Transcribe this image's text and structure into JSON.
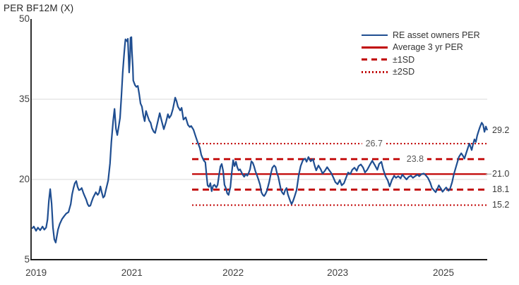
{
  "chart_data": {
    "type": "line",
    "title": "PER BF12M (X)",
    "ylim": [
      5,
      50
    ],
    "grid": "horizontal",
    "legend_position": "top-right",
    "colors": {
      "series": "#1F4E91",
      "stats": "#C00000",
      "grid": "#D9D9D9",
      "axis": "#1A1A1A",
      "text": "#404040",
      "annotation": "#595959",
      "leader": "#A9A9A9"
    },
    "y_ticks": [
      {
        "label": "50",
        "value": 50,
        "grid": false
      },
      {
        "label": "35",
        "value": 35,
        "grid": true
      },
      {
        "label": "20",
        "value": 20,
        "grid": true
      },
      {
        "label": "5",
        "value": 5,
        "grid": false
      }
    ],
    "x_ticks": [
      {
        "label": "2019",
        "pos": 0.011
      },
      {
        "label": "2021",
        "pos": 0.221
      },
      {
        "label": "2022",
        "pos": 0.443
      },
      {
        "label": "2023",
        "pos": 0.672
      },
      {
        "label": "2025",
        "pos": 0.904
      }
    ],
    "legend": [
      {
        "label": "RE asset owners PER",
        "style": "solid",
        "color": "#1F4E91"
      },
      {
        "label": "Average 3 yr PER",
        "style": "solid",
        "color": "#C00000"
      },
      {
        "label": "±1SD",
        "style": "dashed",
        "color": "#C00000"
      },
      {
        "label": "±2SD",
        "style": "dotted",
        "color": "#C00000"
      }
    ],
    "ref_lines": [
      {
        "name": "average-3yr-per",
        "value": 21.0,
        "style": "solid",
        "start": 0.353
      },
      {
        "name": "plus-1sd",
        "value": 23.8,
        "style": "dashed",
        "start": 0.353
      },
      {
        "name": "minus-1sd",
        "value": 18.1,
        "style": "dashed",
        "start": 0.353
      },
      {
        "name": "plus-2sd",
        "value": 26.7,
        "style": "dotted",
        "start": 0.353
      },
      {
        "name": "minus-2sd",
        "value": 15.2,
        "style": "dotted",
        "start": 0.353
      }
    ],
    "annotations": [
      {
        "label": "26.7",
        "value": 26.7,
        "placement": "inline",
        "pos": 0.752
      },
      {
        "label": "23.8",
        "value": 23.8,
        "placement": "inline",
        "pos": 0.842
      },
      {
        "label": "29.2",
        "value": 29.2,
        "placement": "right"
      },
      {
        "label": "21.0",
        "value": 21.0,
        "placement": "right",
        "leader": true
      },
      {
        "label": "18.1",
        "value": 18.1,
        "placement": "right"
      },
      {
        "label": "15.2",
        "value": 15.2,
        "placement": "right"
      }
    ],
    "series": {
      "name": "RE asset owners PER",
      "points": [
        [
          0.002,
          10.8
        ],
        [
          0.006,
          11.2
        ],
        [
          0.011,
          10.4
        ],
        [
          0.015,
          11.0
        ],
        [
          0.02,
          10.5
        ],
        [
          0.025,
          11.2
        ],
        [
          0.029,
          10.6
        ],
        [
          0.033,
          11.0
        ],
        [
          0.036,
          12.5
        ],
        [
          0.039,
          16.0
        ],
        [
          0.042,
          18.2
        ],
        [
          0.045,
          15.5
        ],
        [
          0.048,
          11.0
        ],
        [
          0.051,
          8.8
        ],
        [
          0.054,
          8.2
        ],
        [
          0.059,
          10.6
        ],
        [
          0.063,
          11.7
        ],
        [
          0.068,
          12.6
        ],
        [
          0.073,
          13.2
        ],
        [
          0.077,
          13.6
        ],
        [
          0.082,
          13.9
        ],
        [
          0.087,
          15.4
        ],
        [
          0.09,
          17.2
        ],
        [
          0.093,
          18.4
        ],
        [
          0.096,
          19.3
        ],
        [
          0.099,
          19.7
        ],
        [
          0.102,
          18.6
        ],
        [
          0.105,
          18.0
        ],
        [
          0.108,
          18.1
        ],
        [
          0.111,
          18.4
        ],
        [
          0.115,
          17.4
        ],
        [
          0.118,
          16.8
        ],
        [
          0.121,
          16.2
        ],
        [
          0.124,
          15.4
        ],
        [
          0.127,
          15.0
        ],
        [
          0.13,
          15.1
        ],
        [
          0.133,
          15.9
        ],
        [
          0.136,
          16.6
        ],
        [
          0.139,
          17.1
        ],
        [
          0.142,
          17.6
        ],
        [
          0.146,
          17.1
        ],
        [
          0.149,
          17.5
        ],
        [
          0.152,
          18.7
        ],
        [
          0.155,
          17.6
        ],
        [
          0.158,
          16.6
        ],
        [
          0.161,
          16.9
        ],
        [
          0.164,
          18.0
        ],
        [
          0.169,
          19.8
        ],
        [
          0.173,
          23.0
        ],
        [
          0.176,
          27.0
        ],
        [
          0.18,
          31.0
        ],
        [
          0.183,
          33.2
        ],
        [
          0.186,
          29.5
        ],
        [
          0.189,
          28.3
        ],
        [
          0.192,
          29.8
        ],
        [
          0.195,
          31.5
        ],
        [
          0.198,
          35.5
        ],
        [
          0.201,
          40.0
        ],
        [
          0.204,
          43.5
        ],
        [
          0.206,
          45.5
        ],
        [
          0.207,
          46.2
        ],
        [
          0.211,
          45.8
        ],
        [
          0.212,
          46.3
        ],
        [
          0.214,
          42.5
        ],
        [
          0.215,
          40.0
        ],
        [
          0.217,
          43.0
        ],
        [
          0.218,
          46.5
        ],
        [
          0.22,
          46.6
        ],
        [
          0.221,
          44.0
        ],
        [
          0.223,
          41.0
        ],
        [
          0.224,
          38.5
        ],
        [
          0.228,
          37.6
        ],
        [
          0.231,
          37.3
        ],
        [
          0.234,
          37.5
        ],
        [
          0.237,
          36.0
        ],
        [
          0.24,
          34.2
        ],
        [
          0.243,
          33.6
        ],
        [
          0.246,
          32.0
        ],
        [
          0.249,
          30.9
        ],
        [
          0.252,
          32.8
        ],
        [
          0.255,
          32.0
        ],
        [
          0.259,
          31.0
        ],
        [
          0.262,
          30.6
        ],
        [
          0.265,
          29.6
        ],
        [
          0.269,
          28.9
        ],
        [
          0.272,
          28.7
        ],
        [
          0.277,
          30.5
        ],
        [
          0.282,
          32.4
        ],
        [
          0.286,
          31.0
        ],
        [
          0.291,
          29.4
        ],
        [
          0.296,
          30.8
        ],
        [
          0.3,
          32.2
        ],
        [
          0.303,
          31.5
        ],
        [
          0.307,
          32.0
        ],
        [
          0.311,
          33.2
        ],
        [
          0.316,
          35.3
        ],
        [
          0.319,
          34.6
        ],
        [
          0.322,
          33.6
        ],
        [
          0.327,
          32.9
        ],
        [
          0.33,
          33.4
        ],
        [
          0.334,
          31.2
        ],
        [
          0.339,
          31.6
        ],
        [
          0.344,
          30.2
        ],
        [
          0.348,
          29.8
        ],
        [
          0.351,
          30.0
        ],
        [
          0.356,
          29.3
        ],
        [
          0.361,
          28.0
        ],
        [
          0.365,
          27.0
        ],
        [
          0.37,
          25.9
        ],
        [
          0.373,
          24.6
        ],
        [
          0.376,
          24.0
        ],
        [
          0.379,
          23.5
        ],
        [
          0.382,
          23.2
        ],
        [
          0.385,
          20.5
        ],
        [
          0.387,
          18.9
        ],
        [
          0.39,
          18.6
        ],
        [
          0.393,
          19.3
        ],
        [
          0.396,
          17.8
        ],
        [
          0.399,
          18.8
        ],
        [
          0.402,
          19.0
        ],
        [
          0.406,
          18.5
        ],
        [
          0.409,
          19.0
        ],
        [
          0.412,
          20.8
        ],
        [
          0.415,
          22.4
        ],
        [
          0.418,
          22.9
        ],
        [
          0.421,
          21.6
        ],
        [
          0.424,
          19.0
        ],
        [
          0.427,
          18.4
        ],
        [
          0.43,
          17.4
        ],
        [
          0.433,
          17.1
        ],
        [
          0.437,
          18.6
        ],
        [
          0.44,
          21.3
        ],
        [
          0.443,
          23.6
        ],
        [
          0.446,
          22.5
        ],
        [
          0.449,
          23.3
        ],
        [
          0.452,
          22.3
        ],
        [
          0.455,
          21.7
        ],
        [
          0.458,
          21.9
        ],
        [
          0.461,
          21.4
        ],
        [
          0.464,
          20.9
        ],
        [
          0.467,
          20.5
        ],
        [
          0.471,
          21.0
        ],
        [
          0.474,
          20.7
        ],
        [
          0.477,
          21.2
        ],
        [
          0.48,
          21.9
        ],
        [
          0.483,
          23.4
        ],
        [
          0.486,
          23.1
        ],
        [
          0.489,
          22.4
        ],
        [
          0.492,
          21.5
        ],
        [
          0.495,
          20.8
        ],
        [
          0.498,
          20.1
        ],
        [
          0.502,
          19.0
        ],
        [
          0.505,
          17.6
        ],
        [
          0.508,
          17.1
        ],
        [
          0.511,
          16.9
        ],
        [
          0.514,
          17.3
        ],
        [
          0.517,
          17.9
        ],
        [
          0.522,
          19.5
        ],
        [
          0.526,
          21.2
        ],
        [
          0.529,
          22.2
        ],
        [
          0.533,
          22.6
        ],
        [
          0.536,
          22.3
        ],
        [
          0.539,
          21.2
        ],
        [
          0.542,
          20.5
        ],
        [
          0.545,
          19.2
        ],
        [
          0.548,
          18.0
        ],
        [
          0.551,
          17.5
        ],
        [
          0.554,
          17.2
        ],
        [
          0.557,
          18.0
        ],
        [
          0.56,
          18.4
        ],
        [
          0.563,
          17.2
        ],
        [
          0.568,
          16.0
        ],
        [
          0.571,
          15.4
        ],
        [
          0.574,
          15.9
        ],
        [
          0.577,
          16.6
        ],
        [
          0.582,
          18.0
        ],
        [
          0.587,
          20.9
        ],
        [
          0.591,
          22.5
        ],
        [
          0.596,
          23.6
        ],
        [
          0.601,
          23.9
        ],
        [
          0.604,
          23.3
        ],
        [
          0.608,
          24.2
        ],
        [
          0.613,
          23.4
        ],
        [
          0.618,
          23.8
        ],
        [
          0.622,
          22.5
        ],
        [
          0.625,
          21.7
        ],
        [
          0.63,
          22.6
        ],
        [
          0.635,
          21.9
        ],
        [
          0.639,
          21.1
        ],
        [
          0.644,
          21.6
        ],
        [
          0.649,
          22.3
        ],
        [
          0.653,
          21.8
        ],
        [
          0.658,
          21.2
        ],
        [
          0.663,
          20.3
        ],
        [
          0.667,
          19.5
        ],
        [
          0.672,
          19.1
        ],
        [
          0.677,
          19.9
        ],
        [
          0.681,
          18.9
        ],
        [
          0.686,
          19.3
        ],
        [
          0.69,
          20.2
        ],
        [
          0.695,
          21.3
        ],
        [
          0.7,
          21.0
        ],
        [
          0.704,
          21.8
        ],
        [
          0.709,
          22.2
        ],
        [
          0.714,
          21.6
        ],
        [
          0.718,
          22.5
        ],
        [
          0.723,
          22.8
        ],
        [
          0.728,
          22.2
        ],
        [
          0.732,
          21.3
        ],
        [
          0.737,
          21.8
        ],
        [
          0.742,
          22.6
        ],
        [
          0.748,
          23.5
        ],
        [
          0.754,
          22.6
        ],
        [
          0.759,
          21.8
        ],
        [
          0.763,
          22.9
        ],
        [
          0.768,
          23.3
        ],
        [
          0.772,
          21.9
        ],
        [
          0.777,
          20.6
        ],
        [
          0.782,
          19.8
        ],
        [
          0.786,
          18.7
        ],
        [
          0.791,
          19.9
        ],
        [
          0.796,
          20.7
        ],
        [
          0.8,
          20.3
        ],
        [
          0.805,
          20.6
        ],
        [
          0.81,
          20.2
        ],
        [
          0.814,
          20.9
        ],
        [
          0.819,
          20.4
        ],
        [
          0.823,
          20.0
        ],
        [
          0.828,
          20.5
        ],
        [
          0.833,
          20.7
        ],
        [
          0.837,
          20.3
        ],
        [
          0.842,
          20.6
        ],
        [
          0.847,
          20.9
        ],
        [
          0.851,
          20.6
        ],
        [
          0.856,
          21.0
        ],
        [
          0.861,
          21.1
        ],
        [
          0.865,
          20.8
        ],
        [
          0.87,
          20.3
        ],
        [
          0.875,
          19.4
        ],
        [
          0.879,
          18.4
        ],
        [
          0.884,
          17.9
        ],
        [
          0.887,
          17.6
        ],
        [
          0.891,
          18.3
        ],
        [
          0.894,
          18.9
        ],
        [
          0.899,
          18.2
        ],
        [
          0.902,
          17.7
        ],
        [
          0.907,
          18.2
        ],
        [
          0.91,
          18.5
        ],
        [
          0.915,
          17.9
        ],
        [
          0.918,
          18.1
        ],
        [
          0.923,
          19.5
        ],
        [
          0.927,
          21.0
        ],
        [
          0.932,
          22.5
        ],
        [
          0.938,
          24.2
        ],
        [
          0.943,
          24.9
        ],
        [
          0.947,
          24.4
        ],
        [
          0.95,
          23.9
        ],
        [
          0.955,
          25.2
        ],
        [
          0.958,
          26.0
        ],
        [
          0.961,
          26.7
        ],
        [
          0.966,
          25.5
        ],
        [
          0.969,
          26.6
        ],
        [
          0.972,
          27.5
        ],
        [
          0.975,
          27.0
        ],
        [
          0.978,
          28.2
        ],
        [
          0.981,
          29.0
        ],
        [
          0.984,
          29.8
        ],
        [
          0.988,
          30.6
        ],
        [
          0.991,
          30.2
        ],
        [
          0.994,
          28.9
        ],
        [
          0.997,
          29.9
        ],
        [
          1.0,
          29.2
        ]
      ]
    }
  }
}
